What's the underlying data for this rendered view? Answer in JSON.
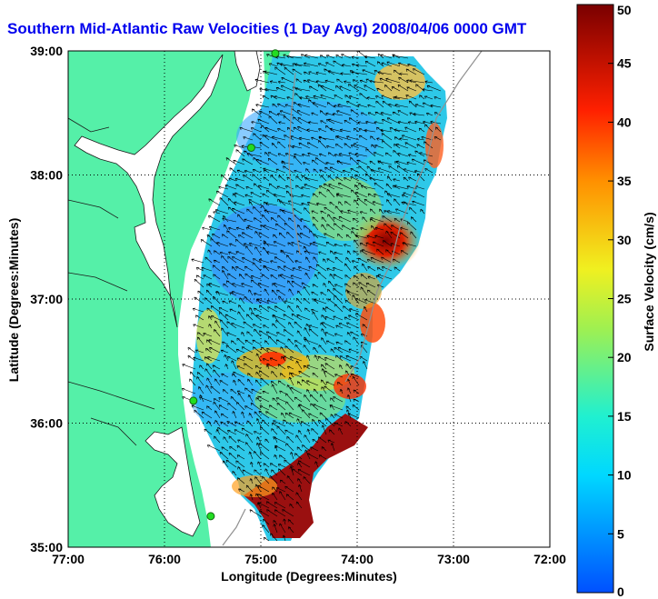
{
  "title": "Southern Mid-Atlantic Raw Velocities (1 Day Avg) 2008/04/06 0000 GMT",
  "xlabel": "Longitude (Degrees:Minutes)",
  "ylabel": "Latitude (Degrees:Minutes)",
  "colorbar": {
    "label": "Surface Velocity (cm/s)",
    "min": 0,
    "max": 50,
    "ticks": [
      "0",
      "5",
      "10",
      "15",
      "20",
      "25",
      "30",
      "35",
      "40",
      "45",
      "50"
    ]
  },
  "axes": {
    "xlim": [
      -77,
      -72
    ],
    "ylim": [
      35,
      39
    ],
    "x_ticks": [
      "77:00",
      "76:00",
      "75:00",
      "74:00",
      "73:00",
      "72:00"
    ],
    "y_ticks": [
      "35:00",
      "36:00",
      "37:00",
      "38:00",
      "39:00"
    ],
    "grid": "dotted"
  },
  "colors": {
    "land": "#55f0a8",
    "title": "#0000ee",
    "station": "#22dd22"
  },
  "stations": [
    {
      "name": "",
      "lon": -74.85,
      "lat": 38.98
    },
    {
      "name": "",
      "lon": -75.1,
      "lat": 38.22
    },
    {
      "name": "",
      "lon": -75.7,
      "lat": 36.18
    },
    {
      "name": "",
      "lon": -75.52,
      "lat": 35.25
    }
  ]
}
